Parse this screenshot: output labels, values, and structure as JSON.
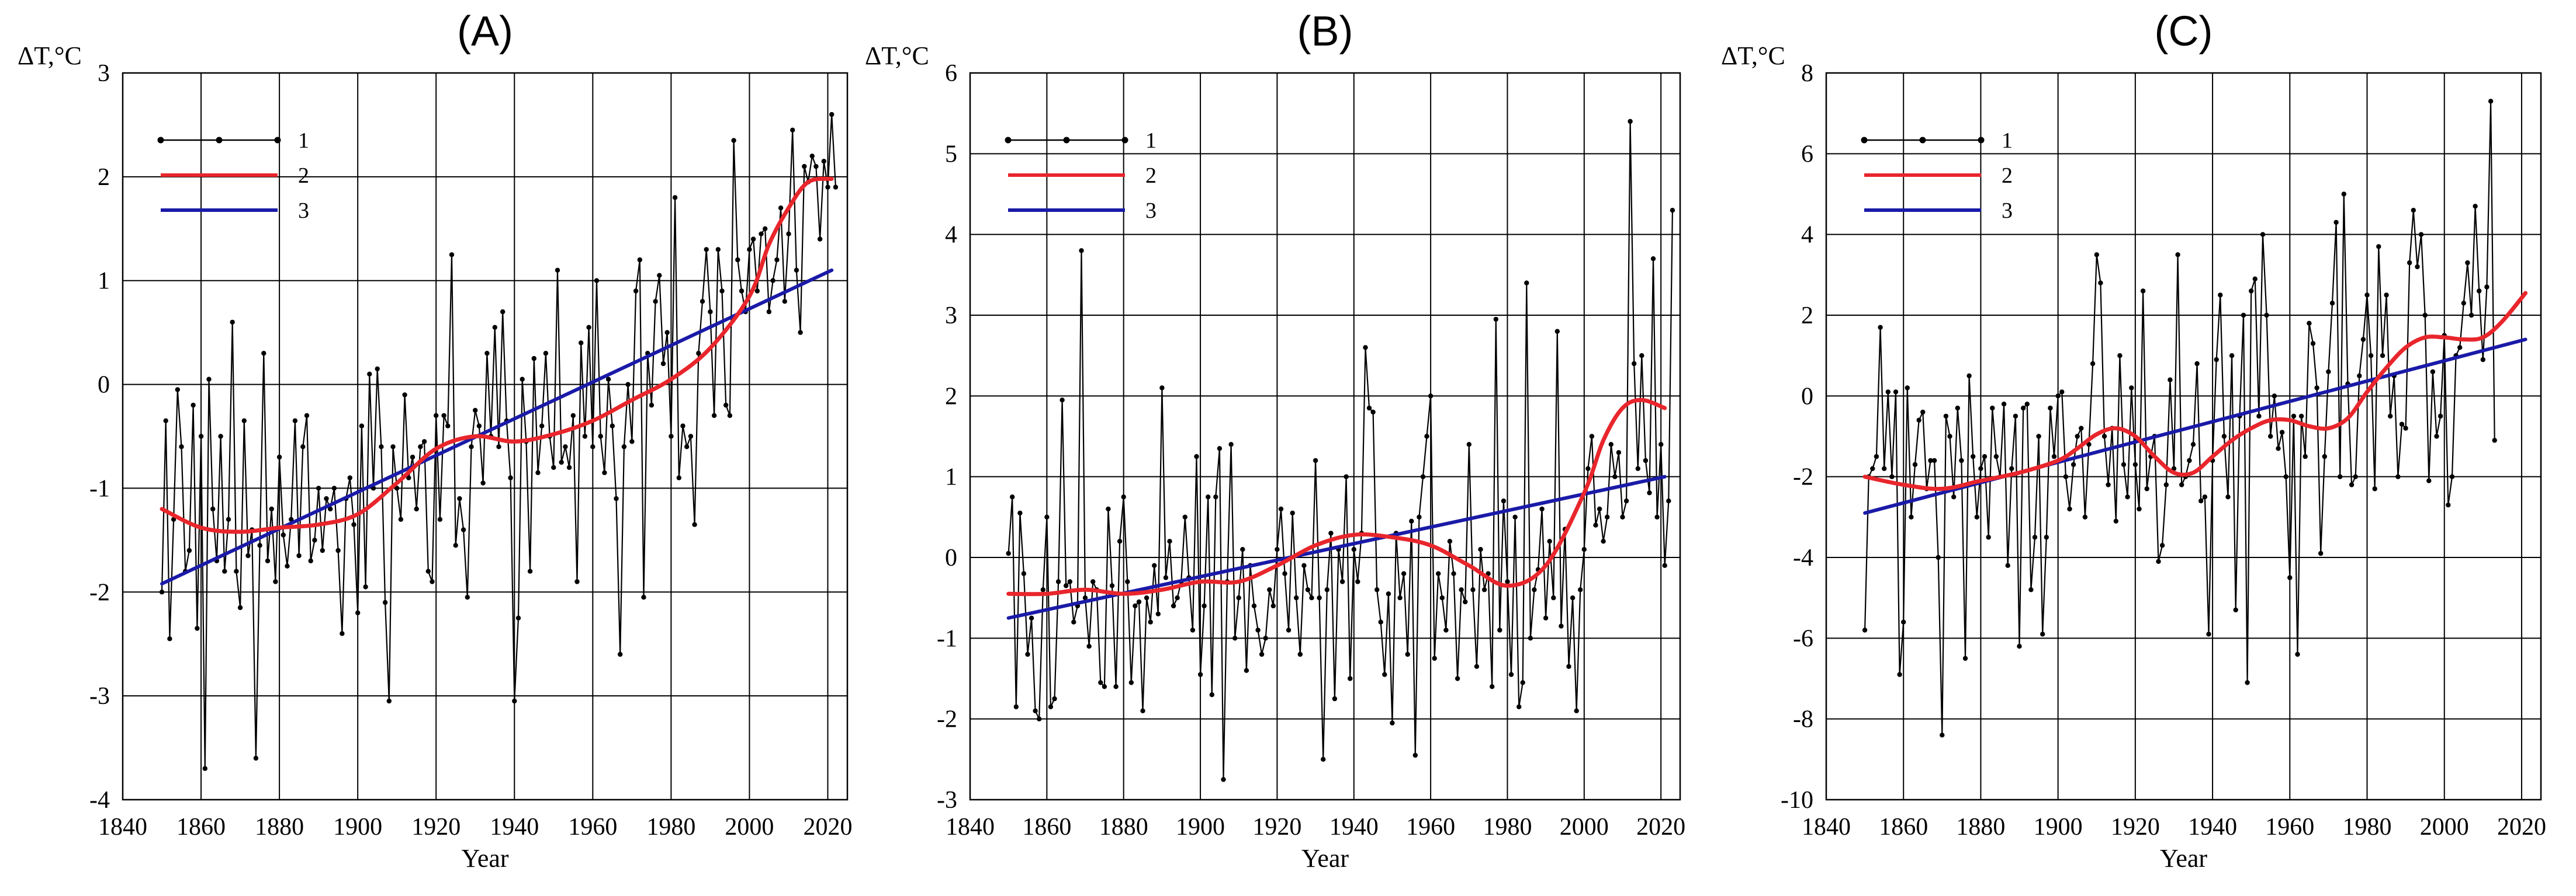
{
  "chart_data": [
    {
      "type": "line",
      "title": "(A)",
      "xlabel": "Year",
      "ylabel": "ΔT,°C",
      "xlim": [
        1840,
        2025
      ],
      "ylim": [
        -4,
        3
      ],
      "xticks": [
        1840,
        1860,
        1880,
        1900,
        1920,
        1940,
        1960,
        1980,
        2000,
        2020
      ],
      "yticks": [
        -4,
        -3,
        -2,
        -1,
        0,
        1,
        2,
        3
      ],
      "legend": [
        {
          "label": "1",
          "color": "#000000",
          "style": "markers"
        },
        {
          "label": "2",
          "color": "#e8262c",
          "style": "smooth"
        },
        {
          "label": "3",
          "color": "#1a1aa8",
          "style": "trend"
        }
      ],
      "series": [
        {
          "name": "1",
          "x_start": 1850,
          "x_step": 1,
          "values": [
            -2.0,
            -0.35,
            -2.45,
            -1.3,
            -0.05,
            -0.6,
            -1.8,
            -1.6,
            -0.2,
            -2.35,
            -0.5,
            -3.7,
            0.05,
            -1.2,
            -1.7,
            -0.5,
            -1.8,
            -1.3,
            0.6,
            -1.8,
            -2.15,
            -0.35,
            -1.65,
            -1.4,
            -3.6,
            -1.55,
            0.3,
            -1.7,
            -1.2,
            -1.9,
            -0.7,
            -1.45,
            -1.75,
            -1.3,
            -0.35,
            -1.65,
            -0.6,
            -0.3,
            -1.7,
            -1.5,
            -1.0,
            -1.6,
            -1.1,
            -1.2,
            -1.0,
            -1.6,
            -2.4,
            -1.1,
            -0.9,
            -1.35,
            -2.2,
            -0.4,
            -1.95,
            0.1,
            -1.0,
            0.15,
            -0.6,
            -2.1,
            -3.05,
            -0.6,
            -1.0,
            -1.3,
            -0.1,
            -0.9,
            -0.7,
            -1.2,
            -0.6,
            -0.55,
            -1.8,
            -1.9,
            -0.3,
            -1.3,
            -0.3,
            -0.4,
            1.25,
            -1.55,
            -1.1,
            -1.4,
            -2.05,
            -0.6,
            -0.25,
            -0.4,
            -0.95,
            0.3,
            -0.5,
            0.55,
            -0.6,
            0.7,
            -0.35,
            -0.9,
            -3.05,
            -2.25,
            0.05,
            -0.55,
            -1.8,
            0.25,
            -0.85,
            -0.4,
            0.3,
            -0.5,
            -0.8,
            1.1,
            -0.75,
            -0.6,
            -0.8,
            -0.3,
            -1.9,
            0.4,
            -0.5,
            0.55,
            -0.6,
            1.0,
            -0.5,
            -0.85,
            0.05,
            -0.4,
            -1.1,
            -2.6,
            -0.6,
            0.0,
            -0.55,
            0.9,
            1.2,
            -2.05,
            0.3,
            -0.2,
            0.8,
            1.05,
            0.2,
            0.5,
            -0.5,
            1.8,
            -0.9,
            -0.4,
            -0.6,
            -0.5,
            -1.35,
            0.3,
            0.8,
            1.3,
            0.7,
            -0.3,
            1.3,
            0.9,
            -0.2,
            -0.3,
            2.35,
            1.2,
            0.9,
            0.7,
            1.3,
            1.4,
            0.9,
            1.45,
            1.5,
            0.7,
            1.0,
            1.2,
            1.7,
            0.8,
            1.45,
            2.45,
            1.1,
            0.5,
            2.1,
            1.95,
            2.2,
            2.1,
            1.4,
            2.15,
            1.9,
            2.6,
            1.9
          ]
        },
        {
          "name": "2",
          "x": [
            1850,
            1860,
            1870,
            1880,
            1890,
            1900,
            1910,
            1920,
            1930,
            1940,
            1950,
            1960,
            1970,
            1980,
            1990,
            2000,
            2005,
            2010,
            2015,
            2021
          ],
          "values": [
            -1.2,
            -1.38,
            -1.42,
            -1.38,
            -1.35,
            -1.25,
            -0.95,
            -0.62,
            -0.5,
            -0.55,
            -0.48,
            -0.35,
            -0.15,
            0.05,
            0.35,
            0.85,
            1.35,
            1.7,
            1.95,
            1.98
          ]
        },
        {
          "name": "3",
          "x": [
            1850,
            2021
          ],
          "values": [
            -1.92,
            1.1
          ]
        }
      ]
    },
    {
      "type": "line",
      "title": "(B)",
      "xlabel": "Year",
      "ylabel": "ΔT,°C",
      "xlim": [
        1840,
        2025
      ],
      "ylim": [
        -3,
        6
      ],
      "xticks": [
        1840,
        1860,
        1880,
        1900,
        1920,
        1940,
        1960,
        1980,
        2000,
        2020
      ],
      "yticks": [
        -3,
        -2,
        -1,
        0,
        1,
        2,
        3,
        4,
        5,
        6
      ],
      "legend": [
        {
          "label": "1",
          "color": "#000000",
          "style": "markers"
        },
        {
          "label": "2",
          "color": "#e8262c",
          "style": "smooth"
        },
        {
          "label": "3",
          "color": "#1a1aa8",
          "style": "trend"
        }
      ],
      "series": [
        {
          "name": "1",
          "x_start": 1850,
          "x_step": 1,
          "values": [
            0.05,
            0.75,
            -1.85,
            0.55,
            -0.2,
            -1.2,
            -0.75,
            -1.9,
            -2.0,
            -0.4,
            0.5,
            -1.85,
            -1.75,
            -0.3,
            1.95,
            -0.35,
            -0.3,
            -0.8,
            -0.6,
            3.8,
            -0.5,
            -1.1,
            -0.3,
            -0.4,
            -1.55,
            -1.6,
            0.6,
            -0.35,
            -1.6,
            0.2,
            0.75,
            -0.3,
            -1.55,
            -0.6,
            -0.55,
            -1.9,
            -0.5,
            -0.8,
            -0.1,
            -0.7,
            2.1,
            -0.25,
            0.2,
            -0.6,
            -0.5,
            -0.3,
            0.5,
            -0.25,
            -0.9,
            1.25,
            -1.45,
            -0.6,
            0.75,
            -1.7,
            0.75,
            1.35,
            -2.75,
            -0.3,
            1.4,
            -1.0,
            -0.5,
            0.1,
            -1.4,
            -0.1,
            -0.6,
            -0.9,
            -1.2,
            -1.0,
            -0.4,
            -0.6,
            0.1,
            0.6,
            -0.2,
            -0.9,
            0.55,
            -0.5,
            -1.2,
            -0.1,
            -0.4,
            -0.5,
            1.2,
            -0.5,
            -2.5,
            -0.4,
            0.3,
            -1.75,
            0.1,
            -0.3,
            1.0,
            -1.5,
            0.1,
            -0.3,
            0.3,
            2.6,
            1.85,
            1.8,
            -0.4,
            -0.8,
            -1.45,
            -0.45,
            -2.05,
            0.3,
            -0.5,
            -0.2,
            -1.2,
            0.45,
            -2.45,
            0.5,
            1.0,
            1.5,
            2.0,
            -1.25,
            -0.2,
            -0.5,
            -0.9,
            0.2,
            -0.2,
            -1.5,
            -0.4,
            -0.55,
            1.4,
            -0.4,
            -1.35,
            0.1,
            -0.4,
            -0.2,
            -1.6,
            2.95,
            -0.9,
            0.7,
            -0.3,
            -1.45,
            0.5,
            -1.85,
            -1.55,
            3.4,
            -1.0,
            -0.4,
            -0.15,
            0.6,
            -0.75,
            0.2,
            -0.5,
            2.8,
            -0.85,
            0.35,
            -1.35,
            -0.5,
            -1.9,
            -0.4,
            0.1,
            1.1,
            1.5,
            0.4,
            0.6,
            0.2,
            0.5,
            1.4,
            1.0,
            1.3,
            0.5,
            0.7,
            5.4,
            2.4,
            1.1,
            2.5,
            1.2,
            0.8,
            3.7,
            0.5,
            1.4,
            -0.1,
            0.7,
            4.3
          ]
        },
        {
          "name": "2",
          "x": [
            1850,
            1860,
            1870,
            1880,
            1890,
            1900,
            1910,
            1920,
            1930,
            1940,
            1950,
            1960,
            1970,
            1980,
            1990,
            2000,
            2005,
            2010,
            2015,
            2021
          ],
          "values": [
            -0.45,
            -0.45,
            -0.4,
            -0.45,
            -0.4,
            -0.3,
            -0.3,
            -0.1,
            0.15,
            0.28,
            0.25,
            0.15,
            -0.1,
            -0.35,
            -0.1,
            0.8,
            1.45,
            1.85,
            1.95,
            1.85
          ]
        },
        {
          "name": "3",
          "x": [
            1850,
            2021
          ],
          "values": [
            -0.75,
            1.0
          ]
        }
      ]
    },
    {
      "type": "line",
      "title": "(C)",
      "xlabel": "Year",
      "ylabel": "ΔT,°C",
      "xlim": [
        1840,
        2025
      ],
      "ylim": [
        -10,
        8
      ],
      "xticks": [
        1840,
        1860,
        1880,
        1900,
        1920,
        1940,
        1960,
        1980,
        2000,
        2020
      ],
      "yticks": [
        -10,
        -8,
        -6,
        -4,
        -2,
        0,
        2,
        4,
        6,
        8
      ],
      "legend": [
        {
          "label": "1",
          "color": "#000000",
          "style": "markers"
        },
        {
          "label": "2",
          "color": "#e8262c",
          "style": "smooth"
        },
        {
          "label": "3",
          "color": "#1a1aa8",
          "style": "trend"
        }
      ],
      "series": [
        {
          "name": "1",
          "x_start": 1850,
          "x_step": 1,
          "values": [
            -5.8,
            -2.0,
            -1.8,
            -1.5,
            1.7,
            -1.8,
            0.1,
            -2.0,
            0.1,
            -6.9,
            -5.6,
            0.2,
            -3.0,
            -1.7,
            -0.6,
            -0.4,
            -2.3,
            -1.6,
            -1.6,
            -4.0,
            -8.4,
            -0.5,
            -1.0,
            -2.5,
            -0.3,
            -1.6,
            -6.5,
            0.5,
            -1.5,
            -3.0,
            -1.8,
            -1.5,
            -3.5,
            -0.3,
            -1.5,
            -2.0,
            -0.2,
            -4.2,
            -1.8,
            -0.5,
            -6.2,
            -0.3,
            -0.2,
            -4.8,
            -3.5,
            -1.0,
            -5.9,
            -3.5,
            -0.3,
            -1.5,
            0.0,
            0.1,
            -2.0,
            -2.8,
            -1.7,
            -1.0,
            -0.8,
            -3.0,
            -1.2,
            0.8,
            3.5,
            2.8,
            -1.0,
            -2.2,
            -0.8,
            -3.1,
            1.0,
            -1.7,
            -2.5,
            0.2,
            -1.7,
            -2.8,
            2.6,
            -2.3,
            -1.5,
            -1.0,
            -4.1,
            -3.7,
            -2.2,
            0.4,
            -1.8,
            3.5,
            -2.2,
            -2.0,
            -1.6,
            -1.2,
            0.8,
            -2.6,
            -2.5,
            -5.9,
            -1.6,
            0.9,
            2.5,
            -1.0,
            -2.5,
            1.0,
            -5.3,
            -0.5,
            2.0,
            -7.1,
            2.6,
            2.9,
            -0.5,
            4.0,
            2.0,
            -1.0,
            0.0,
            -1.3,
            -0.9,
            -2.0,
            -4.5,
            -0.5,
            -6.4,
            -0.5,
            -1.5,
            1.8,
            1.3,
            0.2,
            -3.9,
            -1.5,
            0.6,
            2.3,
            4.3,
            -2.0,
            5.0,
            0.3,
            -2.2,
            -2.0,
            0.5,
            1.4,
            2.5,
            1.0,
            -2.3,
            3.7,
            1.0,
            2.5,
            -0.5,
            0.5,
            -2.0,
            -0.7,
            -0.8,
            3.3,
            4.6,
            3.2,
            4.0,
            2.0,
            -2.1,
            0.6,
            -1.0,
            -0.5,
            1.5,
            -2.7,
            -2.0,
            1.0,
            1.2,
            2.3,
            3.3,
            2.0,
            4.7,
            2.6,
            0.9,
            2.7,
            7.3,
            -1.1
          ]
        },
        {
          "name": "2",
          "x": [
            1850,
            1860,
            1870,
            1880,
            1890,
            1900,
            1905,
            1910,
            1915,
            1920,
            1925,
            1930,
            1935,
            1940,
            1945,
            1950,
            1955,
            1960,
            1965,
            1970,
            1975,
            1980,
            1985,
            1990,
            1995,
            2000,
            2005,
            2010,
            2015,
            2021
          ],
          "values": [
            -2.0,
            -2.2,
            -2.3,
            -2.1,
            -1.9,
            -1.6,
            -1.3,
            -0.95,
            -0.8,
            -1.0,
            -1.5,
            -1.9,
            -1.9,
            -1.5,
            -1.1,
            -0.8,
            -0.6,
            -0.6,
            -0.75,
            -0.8,
            -0.55,
            0.1,
            0.7,
            1.2,
            1.45,
            1.45,
            1.4,
            1.45,
            1.85,
            2.55
          ]
        },
        {
          "name": "3",
          "x": [
            1850,
            2021
          ],
          "values": [
            -2.9,
            1.4
          ]
        }
      ]
    }
  ]
}
